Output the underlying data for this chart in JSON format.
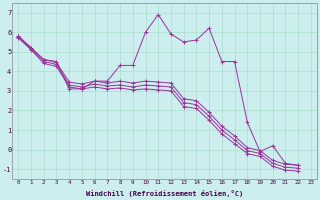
{
  "xlabel": "Windchill (Refroidissement éolien,°C)",
  "background_color": "#cceeee",
  "grid_color": "#aaddcc",
  "line_color": "#993399",
  "xlim": [
    -0.5,
    23.5
  ],
  "ylim": [
    -1.5,
    7.5
  ],
  "xticks": [
    0,
    1,
    2,
    3,
    4,
    5,
    6,
    7,
    8,
    9,
    10,
    11,
    12,
    13,
    14,
    15,
    16,
    17,
    18,
    19,
    20,
    21,
    22,
    23
  ],
  "yticks": [
    -1,
    0,
    1,
    2,
    3,
    4,
    5,
    6,
    7
  ],
  "series": [
    [
      5.8,
      5.2,
      4.6,
      4.5,
      3.1,
      3.1,
      3.5,
      3.5,
      4.3,
      4.3,
      6.0,
      6.9,
      5.9,
      5.5,
      5.6,
      6.2,
      4.5,
      4.5,
      1.4,
      -0.1,
      0.2,
      -0.7,
      -0.8
    ],
    [
      5.8,
      5.2,
      4.6,
      4.45,
      3.45,
      3.35,
      3.5,
      3.4,
      3.5,
      3.4,
      3.5,
      3.45,
      3.4,
      2.6,
      2.5,
      1.9,
      1.2,
      0.7,
      0.1,
      -0.05,
      -0.55,
      -0.75,
      -0.8
    ],
    [
      5.75,
      5.15,
      4.5,
      4.35,
      3.3,
      3.2,
      3.35,
      3.25,
      3.3,
      3.2,
      3.3,
      3.25,
      3.2,
      2.4,
      2.3,
      1.7,
      1.0,
      0.5,
      -0.05,
      -0.2,
      -0.7,
      -0.9,
      -0.95
    ],
    [
      5.7,
      5.1,
      4.4,
      4.25,
      3.2,
      3.1,
      3.2,
      3.1,
      3.15,
      3.05,
      3.1,
      3.05,
      3.0,
      2.2,
      2.1,
      1.5,
      0.8,
      0.3,
      -0.2,
      -0.35,
      -0.85,
      -1.05,
      -1.1
    ]
  ]
}
